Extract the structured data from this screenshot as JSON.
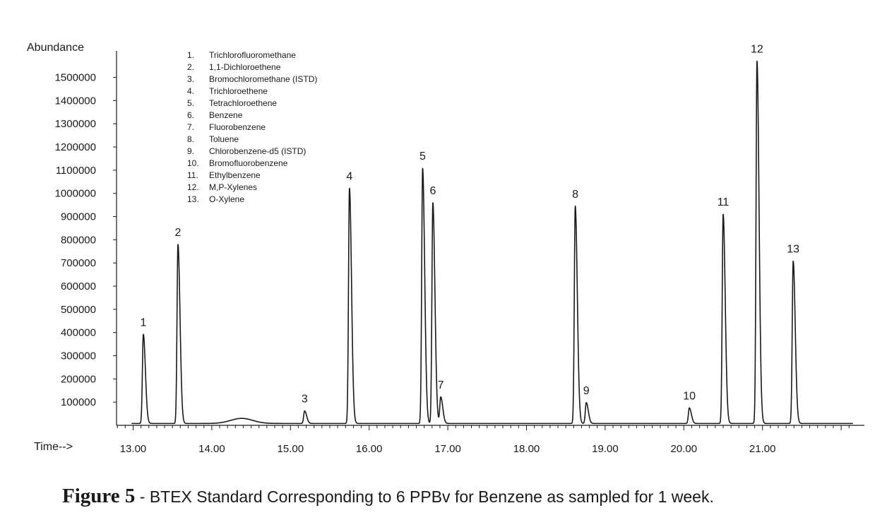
{
  "chart_data": {
    "type": "line",
    "title": "",
    "ylabel": "Abundance",
    "xlabel": "Time-->",
    "xlim": [
      12.75,
      22.15
    ],
    "ylim": [
      0,
      1600000
    ],
    "y_ticks": [
      100000,
      200000,
      300000,
      400000,
      500000,
      600000,
      700000,
      800000,
      900000,
      1000000,
      1100000,
      1200000,
      1300000,
      1400000,
      1500000
    ],
    "y_tick_labels": [
      "100000",
      "200000",
      "300000",
      "400000",
      "500000",
      "600000",
      "700000",
      "800000",
      "900000",
      "1000000",
      "1100000",
      "1200000",
      "1300000",
      "1400000",
      "1500000"
    ],
    "x_ticks": [
      13,
      14,
      15,
      16,
      17,
      18,
      19,
      20,
      21
    ],
    "x_tick_labels": [
      "13.00",
      "14.00",
      "15.00",
      "16.00",
      "17.00",
      "18.00",
      "19.00",
      "20.00",
      "21.00"
    ],
    "grid": false,
    "legend_position": "top-left",
    "baseline": 8000,
    "hump": {
      "x": 14.38,
      "height": 22000
    },
    "peaks": [
      {
        "label": "1",
        "x": 13.13,
        "y": 392000,
        "compound": "Trichlorofluoromethane"
      },
      {
        "label": "2",
        "x": 13.57,
        "y": 780000,
        "compound": "1,1-Dichloroethene"
      },
      {
        "label": "3",
        "x": 15.18,
        "y": 62000,
        "compound": "Bromochloromethane (ISTD)"
      },
      {
        "label": "4",
        "x": 15.75,
        "y": 1022000,
        "compound": "Trichloroethene"
      },
      {
        "label": "5",
        "x": 16.68,
        "y": 1108000,
        "compound": "Tetrachloroethene"
      },
      {
        "label": "6",
        "x": 16.81,
        "y": 960000,
        "compound": "Benzene"
      },
      {
        "label": "7",
        "x": 16.91,
        "y": 122000,
        "compound": "Fluorobenzene"
      },
      {
        "label": "8",
        "x": 18.62,
        "y": 945000,
        "compound": "Toluene"
      },
      {
        "label": "9",
        "x": 18.76,
        "y": 98000,
        "compound": "Chlorobenzene-d5 (ISTD)"
      },
      {
        "label": "10",
        "x": 20.07,
        "y": 75000,
        "compound": "Bromofluorobenzene"
      },
      {
        "label": "11",
        "x": 20.5,
        "y": 910000,
        "compound": "Ethylbenzene"
      },
      {
        "label": "12",
        "x": 20.93,
        "y": 1570000,
        "compound": "M,P-Xylenes"
      },
      {
        "label": "13",
        "x": 21.39,
        "y": 708000,
        "compound": "O-Xylene"
      }
    ],
    "legend": [
      {
        "num": "1.",
        "name": "Trichlorofluoromethane"
      },
      {
        "num": "2.",
        "name": "1,1-Dichloroethene"
      },
      {
        "num": "3.",
        "name": "Bromochloromethane (ISTD)"
      },
      {
        "num": "4.",
        "name": "Trichloroethene"
      },
      {
        "num": "5.",
        "name": "Tetrachloroethene"
      },
      {
        "num": "6.",
        "name": "Benzene"
      },
      {
        "num": "7.",
        "name": "Fluorobenzene"
      },
      {
        "num": "8.",
        "name": "Toluene"
      },
      {
        "num": "9.",
        "name": "Chlorobenzene-d5 (ISTD)"
      },
      {
        "num": "10.",
        "name": "Bromofluorobenzene"
      },
      {
        "num": "11.",
        "name": "Ethylbenzene"
      },
      {
        "num": "12.",
        "name": "M,P-Xylenes"
      },
      {
        "num": "13.",
        "name": "O-Xylene"
      }
    ],
    "line_color": "#1a1a1a"
  },
  "caption": {
    "label": "Figure 5",
    "text": " - BTEX Standard Corresponding to 6 PPBv for Benzene as sampled for 1 week."
  }
}
